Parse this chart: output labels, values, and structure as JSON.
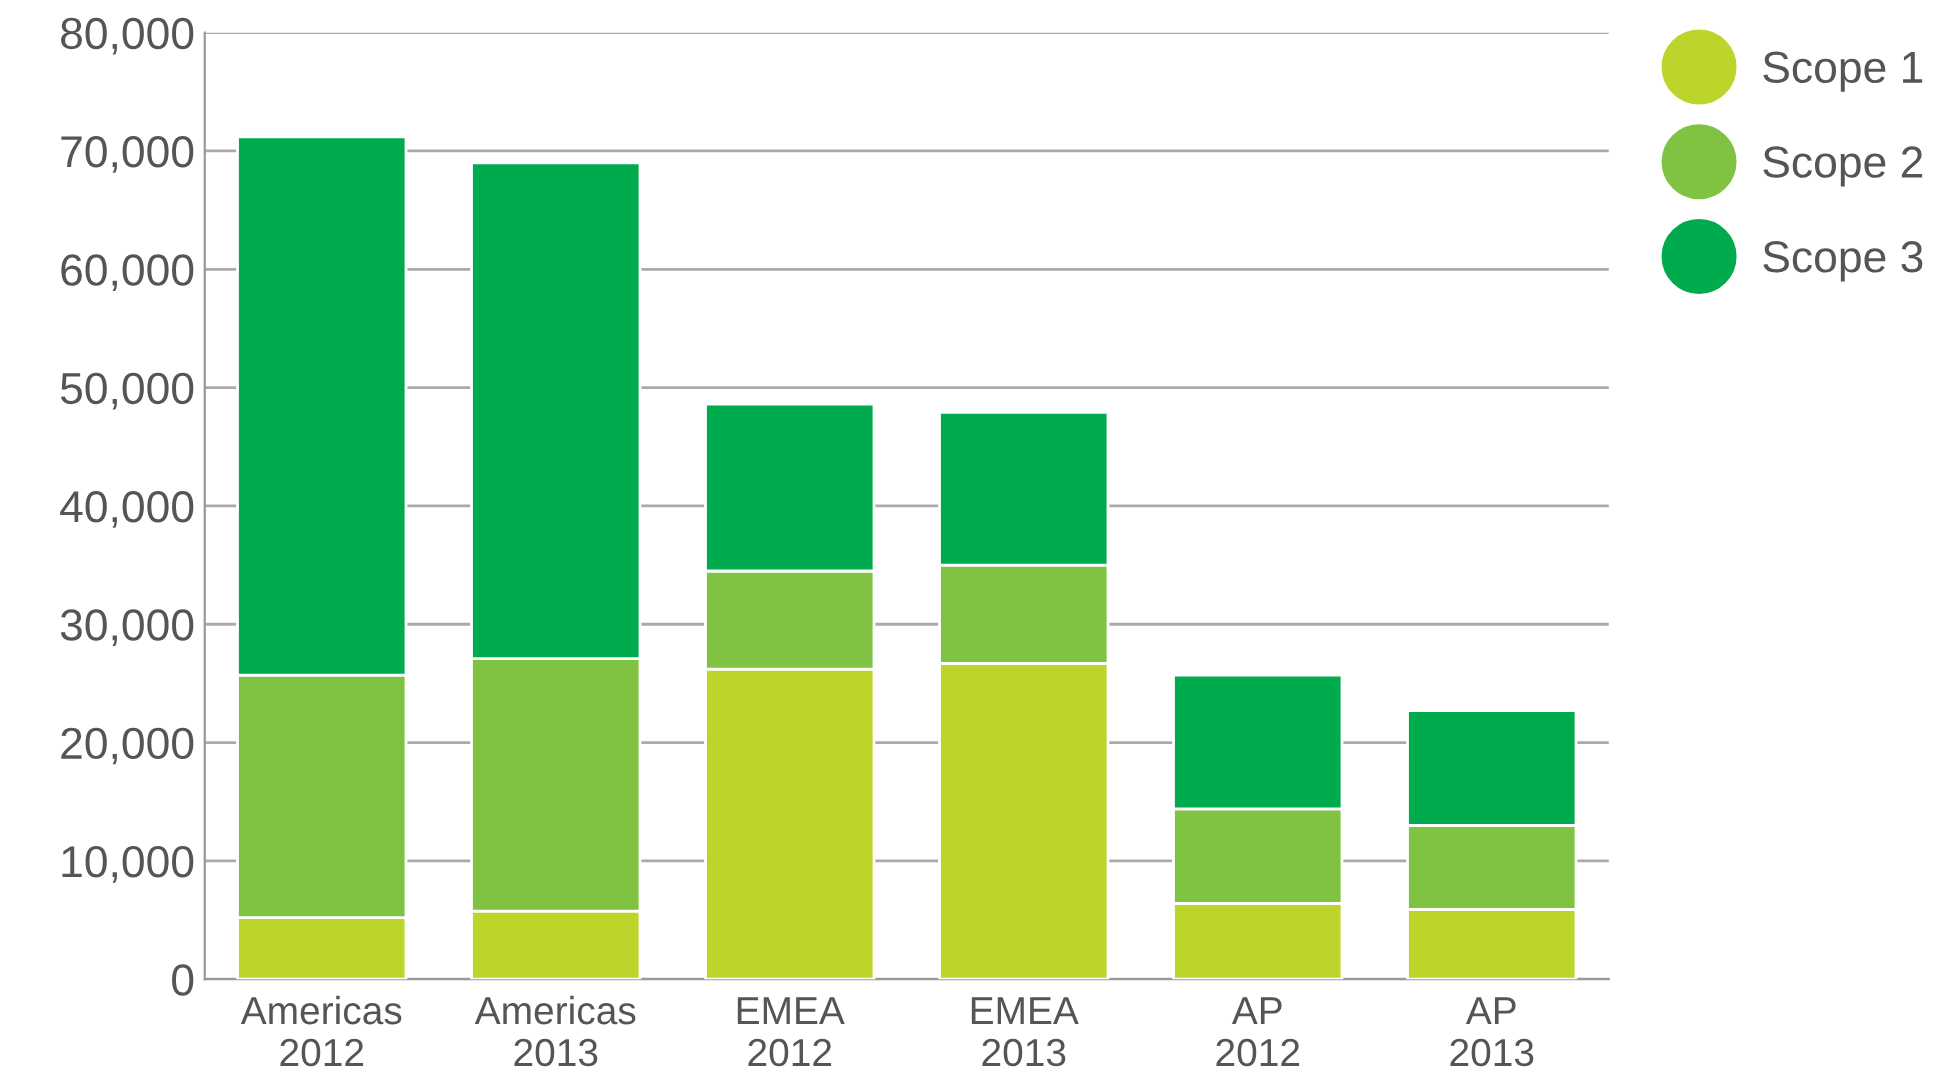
{
  "chart_data": {
    "type": "bar",
    "stacked": true,
    "categories": [
      "Americas\n2012",
      "Americas\n2013",
      "EMEA\n2012",
      "EMEA\n2013",
      "AP\n2012",
      "AP\n2013"
    ],
    "series": [
      {
        "name": "Scope 1",
        "color": "#bdd42b",
        "values": [
          5200,
          5750,
          26200,
          26700,
          6400,
          5900
        ]
      },
      {
        "name": "Scope 2",
        "color": "#80c342",
        "values": [
          20500,
          21350,
          8300,
          8300,
          8000,
          7100
        ]
      },
      {
        "name": "Scope 3",
        "color": "#00ab4e",
        "values": [
          45500,
          41900,
          14100,
          12900,
          11300,
          9700
        ]
      }
    ],
    "ylim": [
      0,
      80000
    ],
    "yticks": [
      {
        "value": 0,
        "label": "0"
      },
      {
        "value": 10000,
        "label": "10,000"
      },
      {
        "value": 20000,
        "label": "20,000"
      },
      {
        "value": 30000,
        "label": "30,000"
      },
      {
        "value": 40000,
        "label": "40,000"
      },
      {
        "value": 50000,
        "label": "50,000"
      },
      {
        "value": 60000,
        "label": "60,000"
      },
      {
        "value": 70000,
        "label": "70,000"
      },
      {
        "value": 80000,
        "label": "80,000"
      }
    ],
    "grid": "y",
    "legend": "right",
    "marker": "circle"
  }
}
